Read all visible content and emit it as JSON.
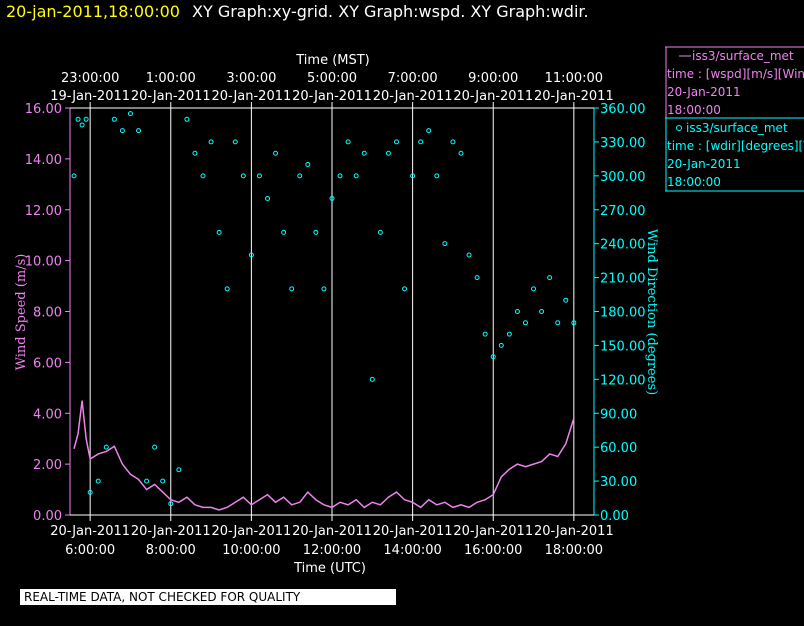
{
  "header": {
    "timestamp": "20-jan-2011,18:00:00",
    "title": "XY Graph:xy-grid.  XY Graph:wspd.  XY Graph:wdir.",
    "timestamp_color": "#ffff00",
    "title_color": "#ffffff"
  },
  "legend": {
    "series1": {
      "name": "iss3/surface_met",
      "marker": "line",
      "desc": "time : [wspd][m/s][Wind",
      "date": "20-Jan-2011",
      "time": "18:00:00",
      "color": "#ee82ee"
    },
    "series2": {
      "name": "iss3/surface_met",
      "marker": "circle",
      "desc": "time : [wdir][degrees][V",
      "date": "20-Jan-2011",
      "time": "18:00:00",
      "color": "#00ffff"
    }
  },
  "quality_note": "REAL-TIME DATA, NOT CHECKED FOR QUALITY",
  "chart_data": {
    "type": "scatter",
    "x_bottom_label": "Time (UTC)",
    "x_top_label": "Time (MST)",
    "y_left_label": "Wind Speed (m/s)",
    "y_right_label": "Wind Direction (degrees)",
    "x_range": [
      "2011-01-20 05:30",
      "2011-01-20 18:30"
    ],
    "grid": "vertical",
    "x_bottom_ticks": [
      {
        "date": "20-Jan-2011",
        "time": "6:00:00"
      },
      {
        "date": "20-Jan-2011",
        "time": "8:00:00"
      },
      {
        "date": "20-Jan-2011",
        "time": "10:00:00"
      },
      {
        "date": "20-Jan-2011",
        "time": "12:00:00"
      },
      {
        "date": "20-Jan-2011",
        "time": "14:00:00"
      },
      {
        "date": "20-Jan-2011",
        "time": "16:00:00"
      },
      {
        "date": "20-Jan-2011",
        "time": "18:00:00"
      }
    ],
    "x_top_ticks": [
      {
        "time": "23:00:00",
        "date": "19-Jan-2011"
      },
      {
        "time": "1:00:00",
        "date": "20-Jan-2011"
      },
      {
        "time": "3:00:00",
        "date": "20-Jan-2011"
      },
      {
        "time": "5:00:00",
        "date": "20-Jan-2011"
      },
      {
        "time": "7:00:00",
        "date": "20-Jan-2011"
      },
      {
        "time": "9:00:00",
        "date": "20-Jan-2011"
      },
      {
        "time": "11:00:00",
        "date": "20-Jan-2011"
      }
    ],
    "y_left_ticks": [
      "0.00",
      "2.00",
      "4.00",
      "6.00",
      "8.00",
      "10.00",
      "12.00",
      "14.00",
      "16.00"
    ],
    "y_left_range": [
      0,
      16
    ],
    "y_right_ticks": [
      "0.00",
      "30.00",
      "60.00",
      "90.00",
      "120.00",
      "150.00",
      "180.00",
      "210.00",
      "240.00",
      "270.00",
      "300.00",
      "330.00",
      "360.00"
    ],
    "y_right_range": [
      0,
      360
    ],
    "series": [
      {
        "name": "wspd",
        "axis": "left",
        "style": "line",
        "color": "#ee82ee",
        "x_hours": [
          5.6,
          5.7,
          5.8,
          5.9,
          6.0,
          6.2,
          6.4,
          6.6,
          6.8,
          7.0,
          7.2,
          7.4,
          7.6,
          7.8,
          8.0,
          8.2,
          8.4,
          8.6,
          8.8,
          9.0,
          9.2,
          9.4,
          9.6,
          9.8,
          10.0,
          10.2,
          10.4,
          10.6,
          10.8,
          11.0,
          11.2,
          11.4,
          11.6,
          11.8,
          12.0,
          12.2,
          12.4,
          12.6,
          12.8,
          13.0,
          13.2,
          13.4,
          13.6,
          13.8,
          14.0,
          14.2,
          14.4,
          14.6,
          14.8,
          15.0,
          15.2,
          15.4,
          15.6,
          15.8,
          16.0,
          16.2,
          16.4,
          16.6,
          16.8,
          17.0,
          17.2,
          17.4,
          17.6,
          17.8,
          18.0
        ],
        "values": [
          2.6,
          3.2,
          4.5,
          3.0,
          2.2,
          2.4,
          2.5,
          2.7,
          2.0,
          1.6,
          1.4,
          1.0,
          1.2,
          0.9,
          0.6,
          0.5,
          0.7,
          0.4,
          0.3,
          0.3,
          0.2,
          0.3,
          0.5,
          0.7,
          0.4,
          0.6,
          0.8,
          0.5,
          0.7,
          0.4,
          0.5,
          0.9,
          0.6,
          0.4,
          0.3,
          0.5,
          0.4,
          0.6,
          0.3,
          0.5,
          0.4,
          0.7,
          0.9,
          0.6,
          0.5,
          0.3,
          0.6,
          0.4,
          0.5,
          0.3,
          0.4,
          0.3,
          0.5,
          0.6,
          0.8,
          1.5,
          1.8,
          2.0,
          1.9,
          2.0,
          2.1,
          2.4,
          2.3,
          2.8,
          3.8
        ]
      },
      {
        "name": "wdir",
        "axis": "right",
        "style": "circle",
        "color": "#00ffff",
        "x_hours": [
          5.6,
          5.7,
          5.8,
          5.9,
          6.0,
          6.2,
          6.4,
          6.6,
          6.8,
          7.0,
          7.2,
          7.4,
          7.6,
          7.8,
          8.0,
          8.2,
          8.4,
          8.6,
          8.8,
          9.0,
          9.2,
          9.4,
          9.6,
          9.8,
          10.0,
          10.2,
          10.4,
          10.6,
          10.8,
          11.0,
          11.2,
          11.4,
          11.6,
          11.8,
          12.0,
          12.2,
          12.4,
          12.6,
          12.8,
          13.0,
          13.2,
          13.4,
          13.6,
          13.8,
          14.0,
          14.2,
          14.4,
          14.6,
          14.8,
          15.0,
          15.2,
          15.4,
          15.6,
          15.8,
          16.0,
          16.2,
          16.4,
          16.6,
          16.8,
          17.0,
          17.2,
          17.4,
          17.6,
          17.8,
          18.0
        ],
        "values": [
          300,
          350,
          345,
          350,
          20,
          30,
          60,
          350,
          340,
          355,
          340,
          30,
          60,
          30,
          10,
          40,
          350,
          320,
          300,
          330,
          250,
          200,
          330,
          300,
          230,
          300,
          280,
          320,
          250,
          200,
          300,
          310,
          250,
          200,
          280,
          300,
          330,
          300,
          320,
          120,
          250,
          320,
          330,
          200,
          300,
          330,
          340,
          300,
          240,
          330,
          320,
          230,
          210,
          160,
          140,
          150,
          160,
          180,
          170,
          200,
          180,
          210,
          170,
          190,
          170
        ]
      }
    ]
  }
}
